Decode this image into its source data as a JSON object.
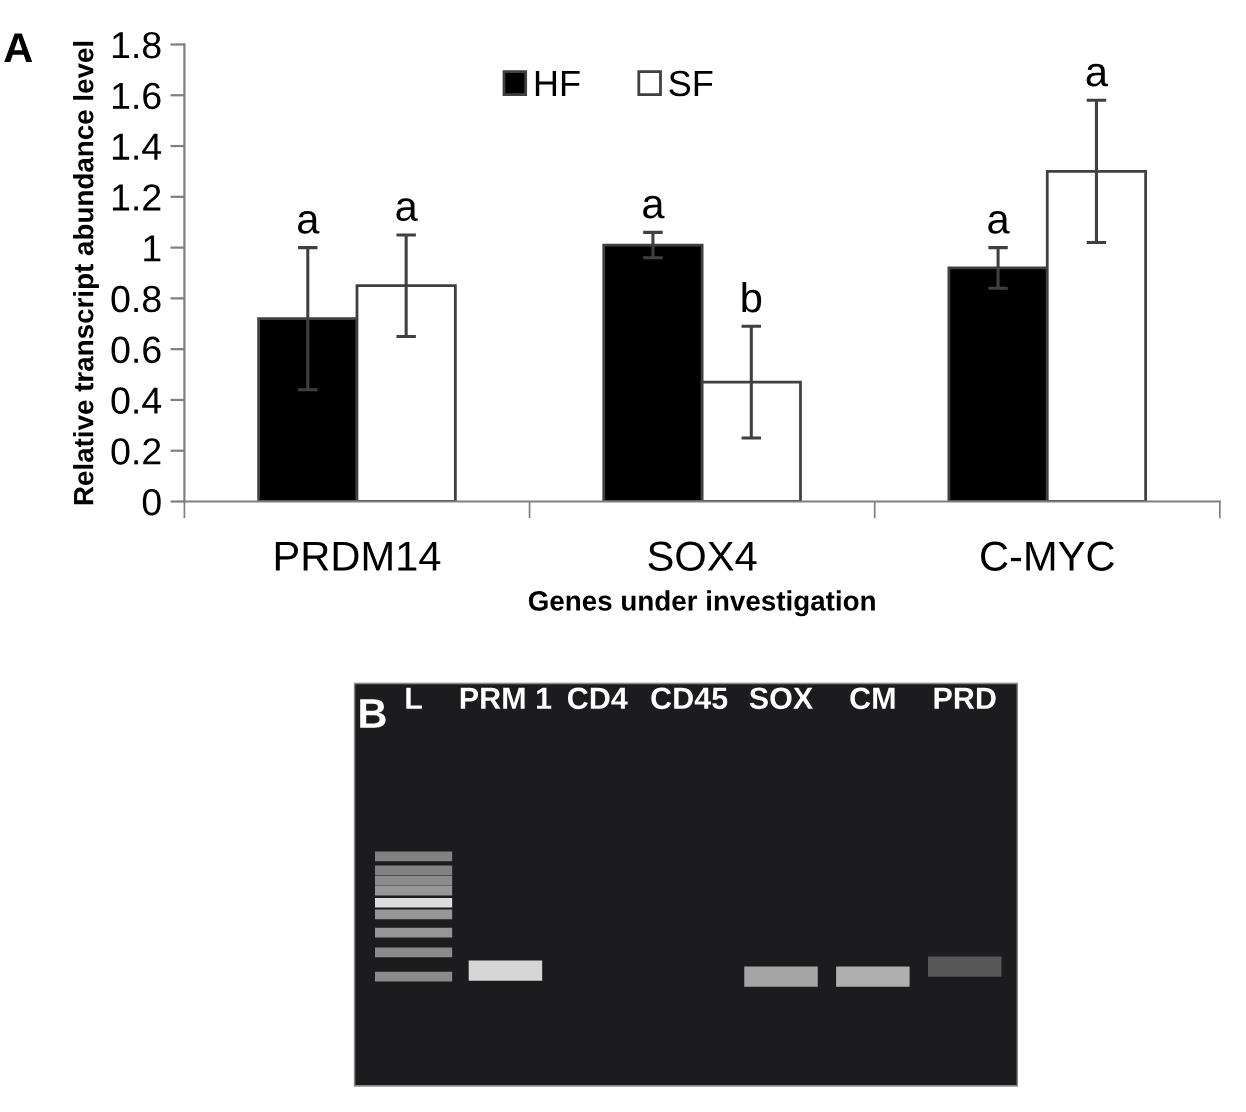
{
  "chart_data": [
    {
      "type": "bar",
      "title": "A",
      "categories": [
        "PRDM14",
        "SOX4",
        "C-MYC"
      ],
      "series": [
        {
          "name": "HF",
          "color": "#000000",
          "values": [
            0.72,
            1.01,
            0.92
          ],
          "errors": [
            0.28,
            0.05,
            0.08
          ],
          "value_labels": [
            "a",
            "a",
            "a"
          ]
        },
        {
          "name": "SF",
          "color": "#ffffff",
          "values": [
            0.85,
            0.47,
            1.3
          ],
          "errors": [
            0.2,
            0.22,
            0.28
          ],
          "value_labels": [
            "a",
            "b",
            "a"
          ]
        }
      ],
      "xlabel": "Genes under investigation",
      "ylabel": "Relative transcript abundance level",
      "ylim": [
        0,
        1.8
      ],
      "yticks": [
        0,
        0.2,
        0.4,
        0.6,
        0.8,
        1,
        1.2,
        1.4,
        1.6,
        1.8
      ],
      "legend": "top"
    },
    {
      "type": "other",
      "title": "B",
      "categories": [
        "L",
        "PRM 1",
        "CD4",
        "CD45",
        "SOX",
        "CM",
        "PRD"
      ]
    }
  ]
}
